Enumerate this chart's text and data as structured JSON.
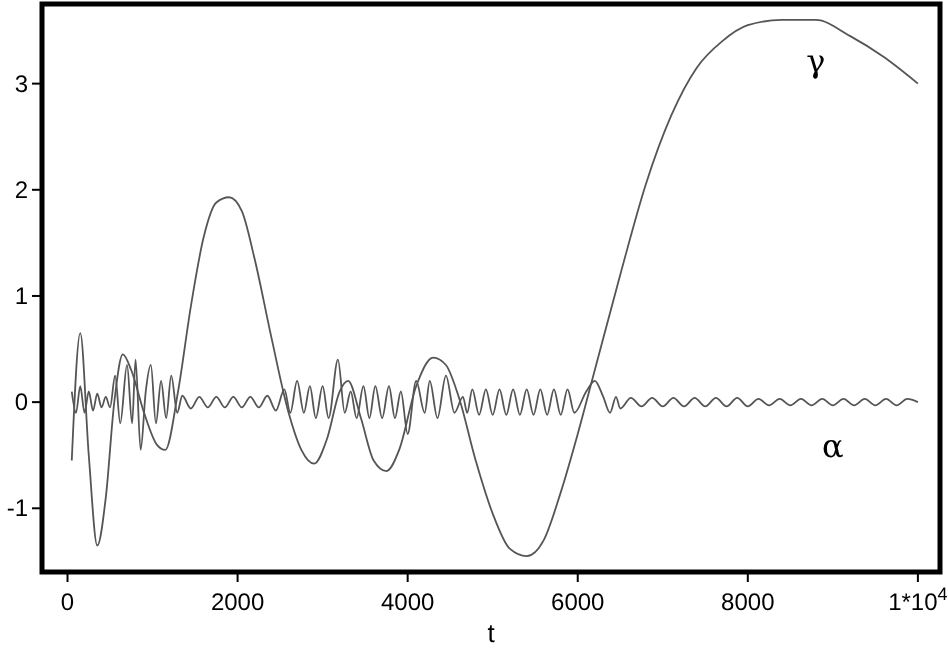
{
  "chart_data": {
    "type": "line",
    "xlabel": "t",
    "xlim": [
      -300,
      10260
    ],
    "ylim": [
      -1.6,
      3.75
    ],
    "xticks": [
      0,
      2000,
      4000,
      6000,
      8000,
      {
        "value": 10000,
        "label": "1*10$^{4}$"
      }
    ],
    "yticks": [
      -1,
      0,
      1,
      2,
      3
    ],
    "grid": false,
    "marker": "none",
    "line_style": "solid",
    "series": [
      {
        "name": "γ",
        "color": "#555555",
        "x": [
          50,
          150,
          250,
          350,
          450,
          550,
          650,
          750,
          900,
          1050,
          1150,
          1300,
          1450,
          1600,
          1750,
          1900,
          2050,
          2200,
          2400,
          2600,
          2750,
          2900,
          3050,
          3200,
          3300,
          3450,
          3600,
          3750,
          3900,
          4100,
          4300,
          4450,
          4600,
          4800,
          5000,
          5200,
          5400,
          5600,
          5800,
          6000,
          6200,
          6500,
          6800,
          7100,
          7400,
          7700,
          8000,
          8400,
          8800,
          9200,
          9600,
          10000
        ],
        "values": [
          -0.55,
          0.65,
          -0.5,
          -1.35,
          -0.9,
          0,
          0.45,
          0.3,
          -0.1,
          -0.4,
          -0.45,
          0.1,
          0.9,
          1.55,
          1.88,
          1.93,
          1.8,
          1.35,
          0.6,
          -0.1,
          -0.45,
          -0.58,
          -0.35,
          0.1,
          0.2,
          -0.15,
          -0.55,
          -0.65,
          -0.45,
          0.15,
          0.42,
          0.35,
          0.05,
          -0.55,
          -1.05,
          -1.38,
          -1.45,
          -1.3,
          -0.85,
          -0.3,
          0.3,
          1.2,
          2.05,
          2.7,
          3.15,
          3.4,
          3.55,
          3.6,
          3.6,
          3.45,
          3.25,
          3.0
        ]
      },
      {
        "name": "α",
        "color": "#555555",
        "x": [
          50,
          100,
          150,
          200,
          250,
          300,
          350,
          400,
          450,
          500,
          560,
          620,
          700,
          760,
          800,
          860,
          920,
          980,
          1040,
          1100,
          1160,
          1220,
          1290,
          1350,
          1450,
          1550,
          1650,
          1750,
          1850,
          1950,
          2050,
          2150,
          2250,
          2350,
          2450,
          2550,
          2620,
          2700,
          2780,
          2850,
          2920,
          3000,
          3070,
          3180,
          3260,
          3330,
          3400,
          3480,
          3550,
          3620,
          3700,
          3780,
          3850,
          3920,
          4000,
          4100,
          4200,
          4260,
          4350,
          4450,
          4550,
          4650,
          4700,
          4760,
          4840,
          4920,
          5000,
          5080,
          5160,
          5240,
          5320,
          5400,
          5480,
          5560,
          5640,
          5720,
          5800,
          5880,
          5960,
          6100,
          6200,
          6300,
          6380,
          6450,
          6500,
          6625,
          6750,
          6875,
          7000,
          7125,
          7250,
          7375,
          7500,
          7625,
          7750,
          7875,
          8000,
          8125,
          8250,
          8375,
          8500,
          8625,
          8750,
          8875,
          9000,
          9125,
          9250,
          9375,
          9500,
          9625,
          9750,
          9875,
          10000
        ],
        "values": [
          0.1,
          -0.1,
          0.15,
          -0.1,
          0.1,
          -0.08,
          0.08,
          -0.05,
          0.05,
          -0.05,
          0.25,
          -0.2,
          0.35,
          -0.2,
          0.4,
          -0.45,
          0.1,
          0.35,
          -0.2,
          0.2,
          -0.15,
          0.25,
          -0.1,
          0.06,
          -0.06,
          0.05,
          -0.05,
          0.05,
          -0.05,
          0.05,
          -0.05,
          0.05,
          -0.05,
          0.06,
          -0.08,
          0.12,
          -0.1,
          0.2,
          -0.1,
          0.15,
          -0.15,
          0.15,
          -0.15,
          0.4,
          -0.1,
          0.1,
          -0.15,
          0.15,
          -0.15,
          0.15,
          -0.15,
          0.15,
          -0.15,
          0.1,
          -0.3,
          0.2,
          -0.1,
          0.2,
          -0.15,
          0.25,
          -0.1,
          0.05,
          -0.1,
          0.12,
          -0.12,
          0.12,
          -0.12,
          0.12,
          -0.12,
          0.12,
          -0.12,
          0.12,
          -0.12,
          0.12,
          -0.12,
          0.12,
          -0.12,
          0.12,
          -0.1,
          0.1,
          0.2,
          0.05,
          -0.1,
          0.05,
          -0.06,
          0.04,
          -0.04,
          0.04,
          -0.04,
          0.04,
          -0.04,
          0.04,
          -0.04,
          0.04,
          -0.04,
          0.04,
          -0.04,
          0.03,
          -0.03,
          0.03,
          -0.03,
          0.03,
          -0.03,
          0.03,
          -0.03,
          0.03,
          -0.03,
          0.03,
          -0.03,
          0.03,
          -0.03,
          0.03,
          0
        ]
      }
    ]
  }
}
